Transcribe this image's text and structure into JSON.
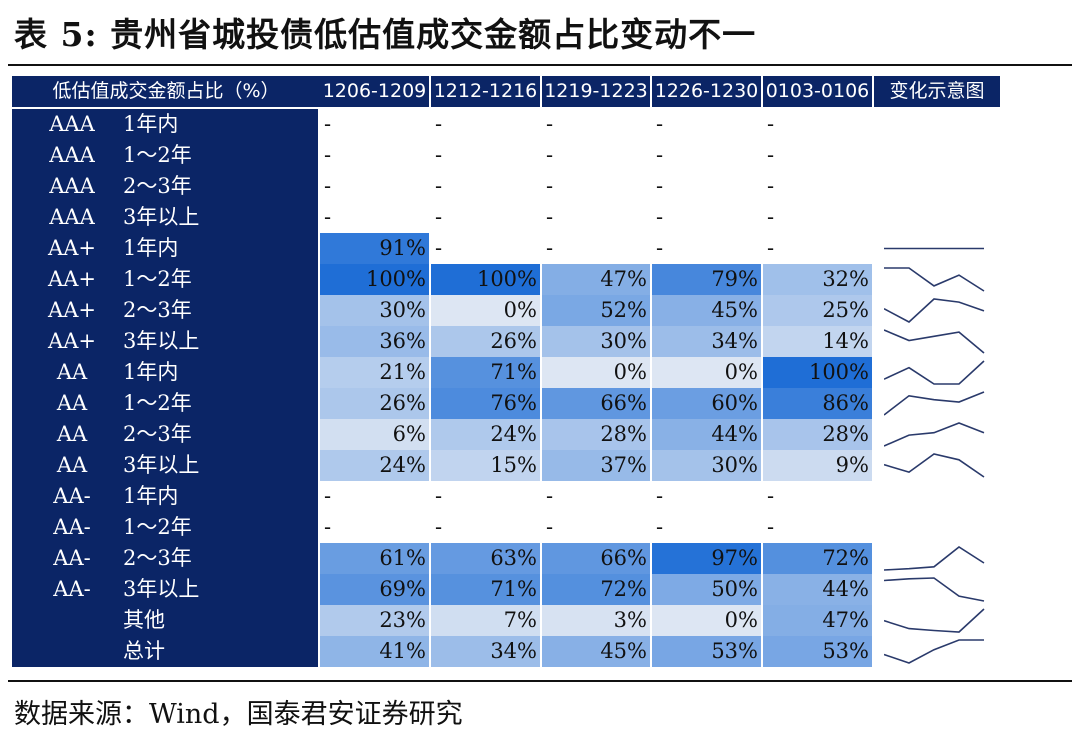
{
  "title": "表 5:  贵州省城投债低估值成交金额占比变动不一",
  "source": "数据来源：Wind，国泰君安证券研究",
  "header": [
    "低估值成交金额占比（%）",
    "1206-1209",
    "1212-1216",
    "1219-1223",
    "1226-1230",
    "0103-0106",
    "变化示意图"
  ],
  "colors": {
    "navy": "#0b2566",
    "cell_low": "#dde6f3",
    "cell_high": "#1f6ed6",
    "spark": "#2a3a6b"
  },
  "rows": [
    {
      "rating": "AAA",
      "term": "1年内",
      "values": [
        null,
        null,
        null,
        null,
        null
      ]
    },
    {
      "rating": "AAA",
      "term": "1～2年",
      "values": [
        null,
        null,
        null,
        null,
        null
      ]
    },
    {
      "rating": "AAA",
      "term": "2～3年",
      "values": [
        null,
        null,
        null,
        null,
        null
      ]
    },
    {
      "rating": "AAA",
      "term": "3年以上",
      "values": [
        null,
        null,
        null,
        null,
        null
      ]
    },
    {
      "rating": "AA+",
      "term": "1年内",
      "values": [
        91,
        null,
        null,
        null,
        null
      ]
    },
    {
      "rating": "AA+",
      "term": "1～2年",
      "values": [
        100,
        100,
        47,
        79,
        32
      ]
    },
    {
      "rating": "AA+",
      "term": "2～3年",
      "values": [
        30,
        0,
        52,
        45,
        25
      ]
    },
    {
      "rating": "AA+",
      "term": "3年以上",
      "values": [
        36,
        26,
        30,
        34,
        14
      ]
    },
    {
      "rating": "AA",
      "term": "1年内",
      "values": [
        21,
        71,
        0,
        0,
        100
      ]
    },
    {
      "rating": "AA",
      "term": "1～2年",
      "values": [
        26,
        76,
        66,
        60,
        86
      ]
    },
    {
      "rating": "AA",
      "term": "2～3年",
      "values": [
        6,
        24,
        28,
        44,
        28
      ]
    },
    {
      "rating": "AA",
      "term": "3年以上",
      "values": [
        24,
        15,
        37,
        30,
        9
      ]
    },
    {
      "rating": "AA-",
      "term": "1年内",
      "values": [
        null,
        null,
        null,
        null,
        null
      ]
    },
    {
      "rating": "AA-",
      "term": "1～2年",
      "values": [
        null,
        null,
        null,
        null,
        null
      ]
    },
    {
      "rating": "AA-",
      "term": "2～3年",
      "values": [
        61,
        63,
        66,
        97,
        72
      ]
    },
    {
      "rating": "AA-",
      "term": "3年以上",
      "values": [
        69,
        71,
        72,
        50,
        44
      ]
    },
    {
      "rating": "",
      "term": "其他",
      "values": [
        23,
        7,
        3,
        0,
        47
      ]
    },
    {
      "rating": "",
      "term": "总计",
      "values": [
        41,
        34,
        45,
        53,
        53
      ]
    }
  ]
}
